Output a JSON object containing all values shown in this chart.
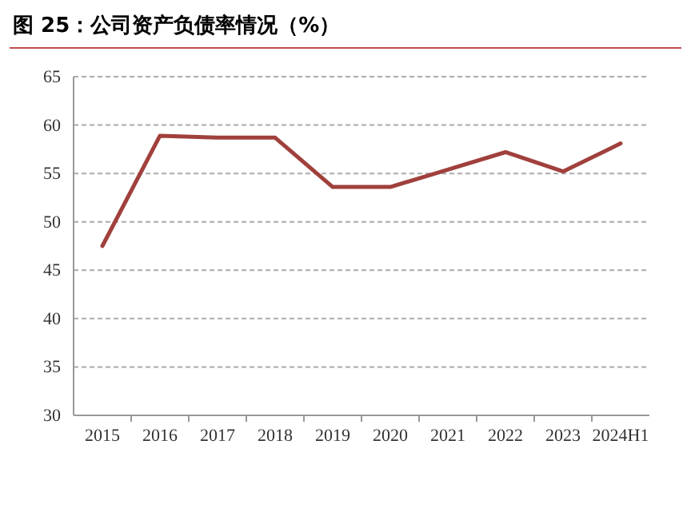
{
  "chart_data": {
    "type": "line",
    "title": "图 25：公司资产负债率情况（%）",
    "categories": [
      "2015",
      "2016",
      "2017",
      "2018",
      "2019",
      "2020",
      "2021",
      "2022",
      "2023",
      "2024H1"
    ],
    "series": [
      {
        "color": "#a0403c",
        "values": [
          47.5,
          58.9,
          58.7,
          58.7,
          53.6,
          53.6,
          55.4,
          57.2,
          55.2,
          58.1
        ]
      }
    ],
    "ylim": [
      30,
      65
    ],
    "yticks": [
      30,
      35,
      40,
      45,
      50,
      55,
      60,
      65
    ],
    "grid": "y",
    "marker": "none",
    "line_style": "solid"
  }
}
